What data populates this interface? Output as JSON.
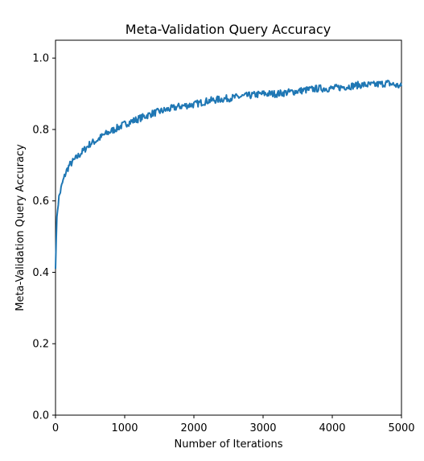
{
  "chart_data": {
    "type": "line",
    "title": "Meta-Validation Query Accuracy",
    "xlabel": "Number of Iterations",
    "ylabel": "Meta-Validation Query Accuracy",
    "xlim": [
      0,
      5000
    ],
    "ylim": [
      0,
      1.05
    ],
    "x_ticks": [
      0,
      1000,
      2000,
      3000,
      4000,
      5000
    ],
    "x_tick_labels": [
      "0",
      "1000",
      "2000",
      "3000",
      "4000",
      "5000"
    ],
    "y_ticks": [
      0.0,
      0.2,
      0.4,
      0.6,
      0.8,
      1.0
    ],
    "y_tick_labels": [
      "0.0",
      "0.2",
      "0.4",
      "0.6",
      "0.8",
      "1.0"
    ],
    "grid": false,
    "legend": false,
    "series": [
      {
        "color": "#1f77b4",
        "x": [
          0,
          10,
          25,
          50,
          75,
          100,
          150,
          200,
          300,
          400,
          500,
          600,
          700,
          800,
          900,
          1000,
          1200,
          1400,
          1600,
          1800,
          2000,
          2200,
          2400,
          2600,
          2800,
          3000,
          3200,
          3400,
          3600,
          3800,
          4000,
          4200,
          4400,
          4600,
          4800,
          5000
        ],
        "y": [
          0.41,
          0.5,
          0.57,
          0.61,
          0.63,
          0.65,
          0.68,
          0.7,
          0.72,
          0.74,
          0.76,
          0.77,
          0.785,
          0.795,
          0.805,
          0.815,
          0.83,
          0.845,
          0.855,
          0.865,
          0.87,
          0.88,
          0.885,
          0.89,
          0.895,
          0.9,
          0.9,
          0.905,
          0.91,
          0.915,
          0.915,
          0.92,
          0.925,
          0.925,
          0.93,
          0.92
        ]
      }
    ]
  }
}
